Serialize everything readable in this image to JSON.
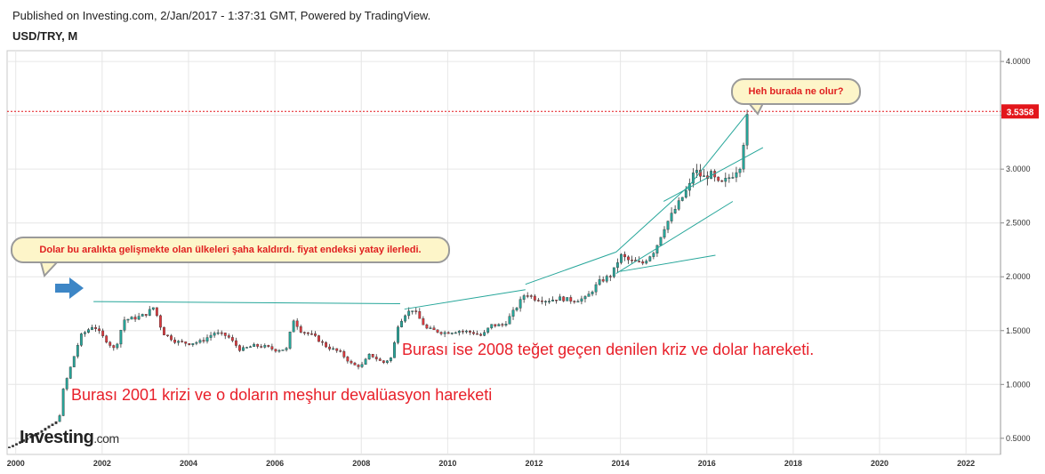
{
  "header": {
    "published": "Published on Investing.com, 2/Jan/2017 - 1:37:31 GMT, Powered by TradingView.",
    "symbol": "USD/TRY, M"
  },
  "annotations": {
    "bubble_left": "Dolar bu aralıkta gelişmekte olan ülkeleri şaha kaldırdı. fiyat endeksi yatay ilerledi.",
    "bubble_right": "Heh burada ne olur?",
    "note_2008": "Burası ise 2008 teğet geçen denilen kriz ve dolar hareketi.",
    "note_2001": "Burası 2001 krizi ve o doların meşhur devalüasyon hareketi"
  },
  "logo": {
    "brand": "Investing",
    "suffix": ".com"
  },
  "colors": {
    "up": "#26a69a",
    "down": "#e0393e",
    "trendline": "#26a69a",
    "price_line": "#e3161b",
    "grid": "#e6e6e6",
    "arrow": "#3d86c6"
  },
  "icons": {
    "arrow": "right-arrow-icon"
  },
  "chart_data": {
    "type": "candlestick",
    "title": "USD/TRY, M",
    "timeframe": "Monthly",
    "x_ticks": [
      "2000",
      "2002",
      "2004",
      "2006",
      "2008",
      "2010",
      "2012",
      "2014",
      "2016",
      "2018",
      "2020",
      "2022"
    ],
    "y_ticks": [
      "0.5000",
      "1.0000",
      "1.5000",
      "2.0000",
      "2.5000",
      "3.0000",
      "3.5000",
      "4.0000"
    ],
    "xlim": [
      1999.8,
      2022.8
    ],
    "ylim": [
      0.35,
      4.1
    ],
    "last_price": 3.5358,
    "last_price_label": "3.5358",
    "grid": true,
    "anchors": [
      [
        1999.8,
        0.41
      ],
      [
        2000.5,
        0.55
      ],
      [
        2001.0,
        0.67
      ],
      [
        2001.1,
        0.95
      ],
      [
        2001.3,
        1.2
      ],
      [
        2001.5,
        1.45
      ],
      [
        2001.8,
        1.55
      ],
      [
        2002.0,
        1.45
      ],
      [
        2002.3,
        1.32
      ],
      [
        2002.5,
        1.6
      ],
      [
        2002.8,
        1.62
      ],
      [
        2003.0,
        1.65
      ],
      [
        2003.2,
        1.72
      ],
      [
        2003.4,
        1.48
      ],
      [
        2003.7,
        1.4
      ],
      [
        2004.0,
        1.38
      ],
      [
        2004.3,
        1.4
      ],
      [
        2004.6,
        1.48
      ],
      [
        2004.9,
        1.45
      ],
      [
        2005.2,
        1.32
      ],
      [
        2005.5,
        1.36
      ],
      [
        2005.8,
        1.35
      ],
      [
        2006.0,
        1.32
      ],
      [
        2006.3,
        1.33
      ],
      [
        2006.4,
        1.62
      ],
      [
        2006.6,
        1.5
      ],
      [
        2006.9,
        1.45
      ],
      [
        2007.2,
        1.35
      ],
      [
        2007.5,
        1.3
      ],
      [
        2007.8,
        1.18
      ],
      [
        2008.0,
        1.17
      ],
      [
        2008.2,
        1.28
      ],
      [
        2008.5,
        1.2
      ],
      [
        2008.7,
        1.25
      ],
      [
        2008.85,
        1.55
      ],
      [
        2009.0,
        1.65
      ],
      [
        2009.2,
        1.7
      ],
      [
        2009.5,
        1.52
      ],
      [
        2009.9,
        1.48
      ],
      [
        2010.3,
        1.5
      ],
      [
        2010.6,
        1.48
      ],
      [
        2010.8,
        1.45
      ],
      [
        2011.0,
        1.55
      ],
      [
        2011.3,
        1.55
      ],
      [
        2011.6,
        1.72
      ],
      [
        2011.8,
        1.85
      ],
      [
        2012.0,
        1.8
      ],
      [
        2012.3,
        1.78
      ],
      [
        2012.6,
        1.8
      ],
      [
        2012.9,
        1.78
      ],
      [
        2013.2,
        1.8
      ],
      [
        2013.5,
        1.95
      ],
      [
        2013.8,
        2.02
      ],
      [
        2014.0,
        2.2
      ],
      [
        2014.2,
        2.15
      ],
      [
        2014.5,
        2.12
      ],
      [
        2014.8,
        2.25
      ],
      [
        2015.0,
        2.45
      ],
      [
        2015.3,
        2.65
      ],
      [
        2015.6,
        2.85
      ],
      [
        2015.7,
        3.0
      ],
      [
        2015.9,
        2.92
      ],
      [
        2016.1,
        2.95
      ],
      [
        2016.3,
        2.85
      ],
      [
        2016.6,
        2.95
      ],
      [
        2016.8,
        3.05
      ],
      [
        2016.9,
        3.45
      ],
      [
        2017.0,
        3.5358
      ]
    ],
    "trendlines": [
      {
        "from": [
          2001.8,
          1.77
        ],
        "to": [
          2008.9,
          1.75
        ]
      },
      {
        "from": [
          2009.0,
          1.7
        ],
        "to": [
          2011.8,
          1.88
        ]
      },
      {
        "from": [
          2011.8,
          1.93
        ],
        "to": [
          2013.9,
          2.23
        ]
      },
      {
        "from": [
          2013.9,
          2.23
        ],
        "to": [
          2015.6,
          2.85
        ]
      },
      {
        "from": [
          2015.6,
          2.85
        ],
        "to": [
          2016.9,
          3.5
        ]
      },
      {
        "from": [
          2014.0,
          2.05
        ],
        "to": [
          2016.2,
          2.2
        ]
      },
      {
        "from": [
          2013.9,
          2.03
        ],
        "to": [
          2016.6,
          2.7
        ]
      },
      {
        "from": [
          2015.0,
          2.7
        ],
        "to": [
          2017.3,
          3.2
        ]
      }
    ]
  }
}
